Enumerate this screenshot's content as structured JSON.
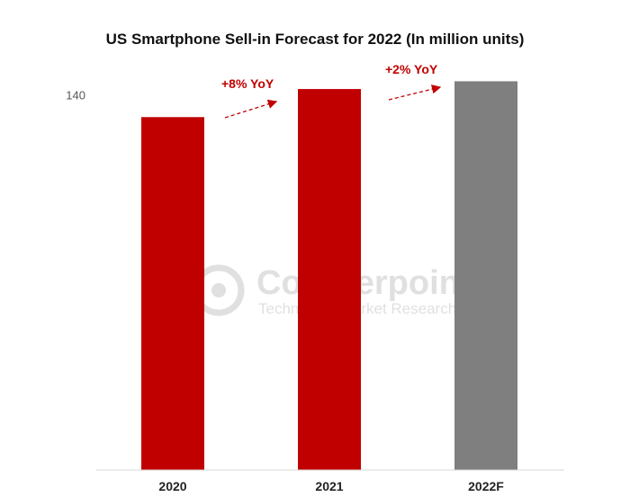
{
  "chart_data": {
    "type": "bar",
    "title": "US Smartphone Sell-in Forecast for 2022 (In million units)",
    "categories": [
      "2020",
      "2021",
      "2022F"
    ],
    "values": [
      132,
      142.5,
      145.4
    ],
    "bar_colors": [
      "#c00000",
      "#c00000",
      "#7f7f7f"
    ],
    "y_ticks": [
      140
    ],
    "ylim": [
      0,
      160
    ],
    "grid": false,
    "legend": "none",
    "annotations": [
      {
        "text": "+8% YoY",
        "color": "#c00000"
      },
      {
        "text": "+2% YoY",
        "color": "#c00000"
      }
    ]
  },
  "watermark": {
    "brand": "Counterpoint",
    "tagline": "Technology Market Research"
  }
}
